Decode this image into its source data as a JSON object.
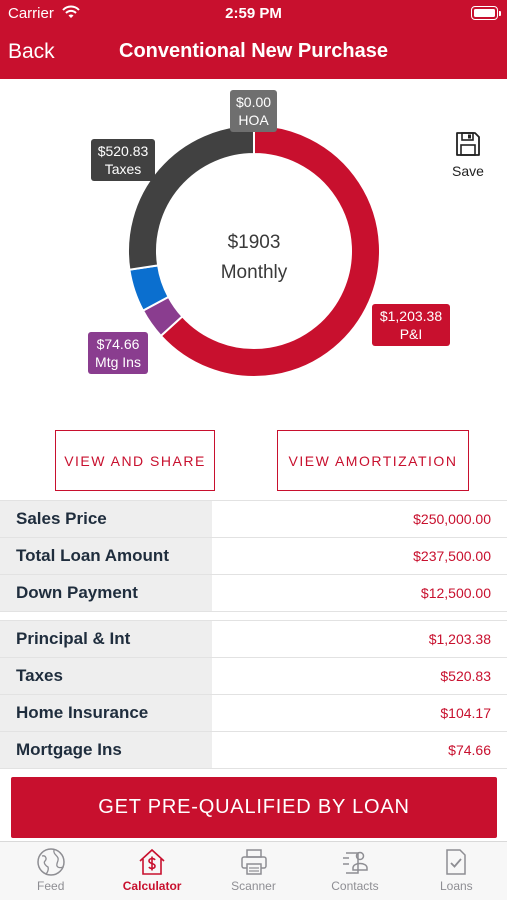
{
  "status_bar": {
    "carrier": "Carrier",
    "time": "2:59 PM"
  },
  "nav": {
    "back_label": "Back",
    "title": "Conventional New Purchase"
  },
  "chart_data": {
    "type": "pie",
    "style": "donut",
    "center_amount": "$1903",
    "center_label": "Monthly",
    "slices": [
      {
        "name": "P&I",
        "value": 1203.38,
        "label": "$1,203.38",
        "color": "#c8102e"
      },
      {
        "name": "Mtg Ins",
        "value": 74.66,
        "label": "$74.66",
        "color": "#8a3d8f"
      },
      {
        "name": "Home Insurance",
        "value": 104.17,
        "label": "",
        "color": "#0b6fcf"
      },
      {
        "name": "Taxes",
        "value": 520.83,
        "label": "$520.83",
        "color": "#414141"
      },
      {
        "name": "HOA",
        "value": 0.0,
        "label": "$0.00",
        "color": "#6f6f6f"
      }
    ]
  },
  "callouts": {
    "hoa": {
      "amount": "$0.00",
      "name": "HOA"
    },
    "taxes": {
      "amount": "$520.83",
      "name": "Taxes"
    },
    "mtg_ins": {
      "amount": "$74.66",
      "name": "Mtg Ins"
    },
    "pi": {
      "amount": "$1,203.38",
      "name": "P&I"
    }
  },
  "save": {
    "label": "Save",
    "icon": "floppy-disk-icon"
  },
  "actions": {
    "view_share": "VIEW AND SHARE",
    "view_amortization": "VIEW AMORTIZATION"
  },
  "loan_rows": [
    {
      "label": "Sales Price",
      "value": "$250,000.00"
    },
    {
      "label": "Total Loan Amount",
      "value": "$237,500.00"
    },
    {
      "label": "Down Payment",
      "value": "$12,500.00"
    }
  ],
  "payment_rows": [
    {
      "label": "Principal & Int",
      "value": "$1,203.38"
    },
    {
      "label": "Taxes",
      "value": "$520.83"
    },
    {
      "label": "Home Insurance",
      "value": "$104.17"
    },
    {
      "label": "Mortgage Ins",
      "value": "$74.66"
    }
  ],
  "cta": {
    "label": "GET PRE-QUALIFIED BY LOAN"
  },
  "tabs": [
    {
      "label": "Feed",
      "icon": "globe-icon",
      "active": false
    },
    {
      "label": "Calculator",
      "icon": "calculator-dollar-icon",
      "active": true
    },
    {
      "label": "Scanner",
      "icon": "printer-icon",
      "active": false
    },
    {
      "label": "Contacts",
      "icon": "contacts-icon",
      "active": false
    },
    {
      "label": "Loans",
      "icon": "document-check-icon",
      "active": false
    }
  ],
  "colors": {
    "brand": "#c8102e",
    "tab_inactive": "#8e8e93"
  }
}
